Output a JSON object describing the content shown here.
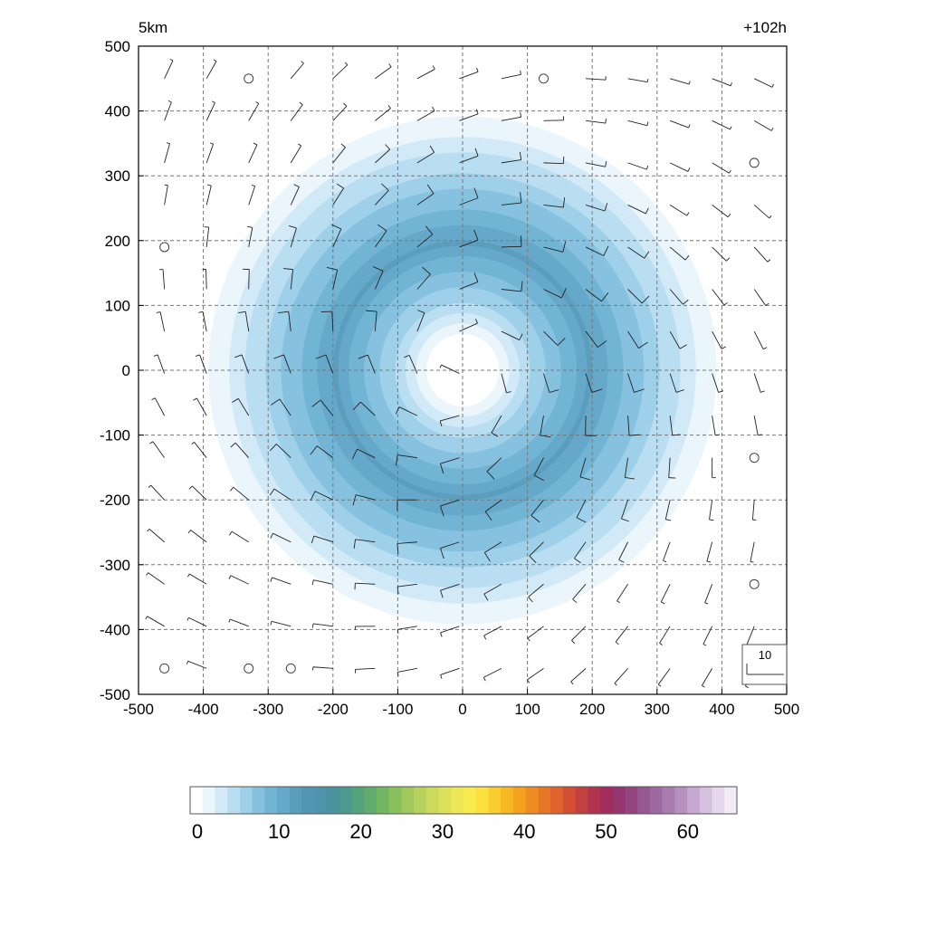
{
  "chart_data": {
    "type": "heatmap",
    "level_label": "5km",
    "time_label": "+102h",
    "x_ticks": [
      "-500",
      "-400",
      "-300",
      "-200",
      "-100",
      "0",
      "100",
      "200",
      "300",
      "400",
      "500"
    ],
    "y_ticks": [
      "500",
      "400",
      "300",
      "200",
      "100",
      "0",
      "-100",
      "-200",
      "-300",
      "-400",
      "-500"
    ],
    "xlim": [
      -500,
      500
    ],
    "ylim": [
      -500,
      500
    ],
    "grid": true,
    "grid_style": "dashed",
    "field": {
      "shape": "annulus",
      "center": [
        0,
        0
      ],
      "eye_radius": 80,
      "peak_radius": 200,
      "outer_radius": 420,
      "peak_value": 12,
      "min_value": 0
    },
    "wind": {
      "reference_speed_label": "10",
      "rotation": "cyclonic",
      "spacing": 65,
      "calm_points": [
        [
          -330,
          450
        ],
        [
          125,
          450
        ],
        [
          450,
          320
        ],
        [
          -460,
          190
        ],
        [
          450,
          -135
        ],
        [
          450,
          -330
        ],
        [
          -460,
          -460
        ],
        [
          -330,
          -460
        ],
        [
          -265,
          -460
        ]
      ]
    },
    "colorbar": {
      "ticks": [
        "0",
        "10",
        "20",
        "30",
        "40",
        "50",
        "60"
      ],
      "range": [
        0,
        66
      ],
      "colors": [
        "#ffffff",
        "#eaf5fc",
        "#d2eaf8",
        "#b9def2",
        "#9fd0ea",
        "#86c2e0",
        "#72b4d4",
        "#66a8c9",
        "#5b9dbd",
        "#5396b4",
        "#4f93aa",
        "#4a939d",
        "#4c9a8d",
        "#55a37e",
        "#61ab6e",
        "#72b664",
        "#88c05e",
        "#a0c85c",
        "#b7d15c",
        "#cbd95c",
        "#dde05a",
        "#ede656",
        "#f7eb4f",
        "#fbe040",
        "#f9cd30",
        "#f6b825",
        "#f3a31f",
        "#ee8e22",
        "#e67727",
        "#de632d",
        "#d24f34",
        "#c2403f",
        "#b0344d",
        "#a02d5c",
        "#96366e",
        "#93457f",
        "#975790",
        "#9e69a0",
        "#a97cb0",
        "#b691c0",
        "#c6a8d0",
        "#d6c0df",
        "#e6d8ed",
        "#f3ecf7"
      ]
    }
  }
}
